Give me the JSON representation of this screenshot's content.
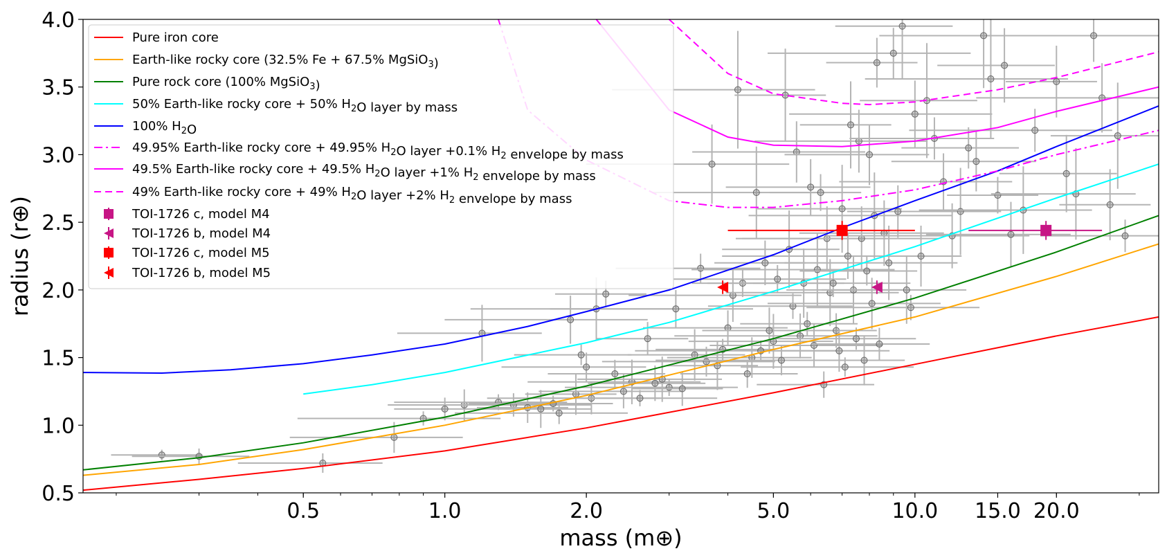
{
  "chart_data": {
    "type": "scatter",
    "xscale": "log",
    "xlabel": "mass (m⊕)",
    "ylabel": "radius (r⊕)",
    "xlim": [
      0.17,
      33
    ],
    "ylim": [
      0.5,
      4.0
    ],
    "xticks": [
      0.5,
      1.0,
      2.0,
      5.0,
      10.0,
      15.0,
      20.0
    ],
    "xtick_labels": [
      "0.5",
      "1.0",
      "2.0",
      "5.0",
      "10.0",
      "15.0",
      "20.0"
    ],
    "yticks": [
      0.5,
      1.0,
      1.5,
      2.0,
      2.5,
      3.0,
      3.5,
      4.0
    ],
    "ytick_labels": [
      "0.5",
      "1.0",
      "1.5",
      "2.0",
      "2.5",
      "3.0",
      "3.5",
      "4.0"
    ],
    "legend_position": "top-left",
    "curves": [
      {
        "name": "Pure iron core",
        "label_parts": [
          [
            "Pure iron core",
            ""
          ]
        ],
        "color": "#ff0000",
        "dash": "solid",
        "x": [
          0.17,
          0.3,
          0.5,
          1,
          2,
          5,
          10,
          20,
          33
        ],
        "y": [
          0.52,
          0.6,
          0.68,
          0.81,
          0.98,
          1.24,
          1.45,
          1.66,
          1.8
        ]
      },
      {
        "name": "Earth-like rocky core (32.5% Fe + 67.5% MgSiO3)",
        "label_parts": [
          [
            "Earth-like rocky core (32.5% Fe + 67.5% MgSiO",
            ""
          ],
          [
            "3",
            "sub"
          ],
          [
            ")",
            ""
          ]
        ],
        "color": "#ffa500",
        "dash": "solid",
        "x": [
          0.17,
          0.3,
          0.5,
          1,
          2,
          5,
          10,
          20,
          33
        ],
        "y": [
          0.63,
          0.71,
          0.82,
          1.0,
          1.22,
          1.56,
          1.8,
          2.1,
          2.34
        ]
      },
      {
        "name": "Pure rock core (100% MgSiO3)",
        "label_parts": [
          [
            "Pure rock core (100% MgSiO",
            ""
          ],
          [
            "3",
            "sub"
          ],
          [
            ")",
            ""
          ]
        ],
        "color": "#008000",
        "dash": "solid",
        "x": [
          0.17,
          0.3,
          0.5,
          1,
          2,
          5,
          10,
          20,
          33
        ],
        "y": [
          0.67,
          0.76,
          0.87,
          1.06,
          1.29,
          1.64,
          1.94,
          2.28,
          2.55
        ]
      },
      {
        "name": "50% Earth-like rocky core + 50% H2O layer by mass",
        "label_parts": [
          [
            "50% Earth-like rocky core + 50% H",
            ""
          ],
          [
            "2",
            "sub"
          ],
          [
            "O layer by mass",
            ""
          ]
        ],
        "color": "#00ffff",
        "dash": "solid",
        "x": [
          0.5,
          0.7,
          1,
          2,
          3,
          5,
          10,
          20,
          33
        ],
        "y": [
          1.23,
          1.3,
          1.39,
          1.61,
          1.76,
          1.99,
          2.32,
          2.68,
          2.93
        ]
      },
      {
        "name": "100% H2O",
        "label_parts": [
          [
            "100% H",
            ""
          ],
          [
            "2",
            "sub"
          ],
          [
            "O",
            ""
          ]
        ],
        "color": "#0000ff",
        "dash": "solid",
        "x": [
          0.17,
          0.25,
          0.35,
          0.5,
          0.7,
          1,
          1.5,
          2,
          3,
          5,
          7,
          10,
          15,
          20,
          33
        ],
        "y": [
          1.39,
          1.385,
          1.41,
          1.455,
          1.52,
          1.6,
          1.73,
          1.84,
          2.0,
          2.26,
          2.46,
          2.66,
          2.88,
          3.06,
          3.36
        ]
      },
      {
        "name": "49.95% Earth-like rocky core + 49.95% H2O layer +0.1% H2 envelope by mass",
        "label_parts": [
          [
            "49.95% Earth-like rocky core + 49.95% H",
            ""
          ],
          [
            "2",
            "sub"
          ],
          [
            "O layer +0.1% H",
            ""
          ],
          [
            "2",
            "sub"
          ],
          [
            " envelope by mass",
            ""
          ]
        ],
        "color": "#ff00ff",
        "dash": "dashdot",
        "x": [
          1.3,
          1.5,
          2,
          3,
          4,
          5,
          7,
          10,
          15,
          20,
          33
        ],
        "y": [
          4.0,
          3.33,
          2.96,
          2.66,
          2.61,
          2.61,
          2.66,
          2.74,
          2.88,
          3.0,
          3.18
        ]
      },
      {
        "name": "49.5% Earth-like rocky core + 49.5% H2O layer +1% H2 envelope by mass",
        "label_parts": [
          [
            "49.5% Earth-like rocky core + 49.5% H",
            ""
          ],
          [
            "2",
            "sub"
          ],
          [
            "O layer +1% H",
            ""
          ],
          [
            "2",
            "sub"
          ],
          [
            " envelope by mass",
            ""
          ]
        ],
        "color": "#ff00ff",
        "dash": "solid",
        "x": [
          2.1,
          3,
          4,
          5,
          7,
          10,
          15,
          20,
          33
        ],
        "y": [
          4.0,
          3.33,
          3.13,
          3.07,
          3.06,
          3.1,
          3.2,
          3.32,
          3.5
        ]
      },
      {
        "name": "49% Earth-like rocky core + 49% H2O layer +2% H2 envelope by mass",
        "label_parts": [
          [
            "49% Earth-like rocky core + 49% H",
            ""
          ],
          [
            "2",
            "sub"
          ],
          [
            "O layer +2% H",
            ""
          ],
          [
            "2",
            "sub"
          ],
          [
            " envelope by mass",
            ""
          ]
        ],
        "color": "#ff00ff",
        "dash": "dashed",
        "x": [
          3,
          4,
          5,
          7,
          8,
          10,
          15,
          20,
          33
        ],
        "y": [
          4.0,
          3.6,
          3.45,
          3.38,
          3.37,
          3.39,
          3.48,
          3.57,
          3.76
        ]
      }
    ],
    "planets": [
      {
        "name": "TOI-1726 c, model M4",
        "marker": "square",
        "color": "#c71585",
        "mass": 19.0,
        "radius": 2.44,
        "mass_err": [
          6.0,
          6.0
        ],
        "radius_err": [
          0.07,
          0.07
        ]
      },
      {
        "name": "TOI-1726 b, model M4",
        "marker": "triangle-left",
        "color": "#c71585",
        "mass": 8.3,
        "radius": 2.02,
        "mass_err": [
          0,
          0
        ],
        "radius_err": [
          0.05,
          0.05
        ]
      },
      {
        "name": "TOI-1726 c, model M5",
        "marker": "square",
        "color": "#ff0000",
        "mass": 7.0,
        "radius": 2.44,
        "mass_err": [
          3.0,
          3.0
        ],
        "radius_err": [
          0.07,
          0.07
        ]
      },
      {
        "name": "TOI-1726 b, model M5",
        "marker": "triangle-left",
        "color": "#ff0000",
        "mass": 3.9,
        "radius": 2.02,
        "mass_err": [
          0,
          0
        ],
        "radius_err": [
          0.05,
          0.05
        ]
      }
    ],
    "background_planets": [
      [
        0.25,
        0.78
      ],
      [
        0.3,
        0.77
      ],
      [
        0.55,
        0.72
      ],
      [
        0.78,
        0.91
      ],
      [
        0.9,
        1.05
      ],
      [
        1.0,
        1.12
      ],
      [
        1.1,
        1.15
      ],
      [
        1.2,
        1.68
      ],
      [
        1.3,
        1.17
      ],
      [
        1.4,
        1.15
      ],
      [
        1.5,
        1.13
      ],
      [
        1.6,
        1.12
      ],
      [
        1.7,
        1.16
      ],
      [
        1.75,
        1.09
      ],
      [
        1.85,
        1.78
      ],
      [
        1.9,
        1.23
      ],
      [
        1.95,
        1.52
      ],
      [
        2.0,
        1.43
      ],
      [
        2.05,
        1.2
      ],
      [
        2.1,
        1.86
      ],
      [
        2.2,
        1.97
      ],
      [
        2.3,
        1.38
      ],
      [
        2.4,
        1.25
      ],
      [
        2.5,
        1.32
      ],
      [
        2.6,
        1.2
      ],
      [
        2.7,
        1.64
      ],
      [
        2.8,
        1.31
      ],
      [
        2.9,
        1.34
      ],
      [
        3.0,
        1.28
      ],
      [
        3.1,
        1.86
      ],
      [
        3.2,
        1.27
      ],
      [
        3.4,
        1.52
      ],
      [
        3.5,
        2.16
      ],
      [
        3.6,
        1.47
      ],
      [
        3.7,
        2.93
      ],
      [
        3.8,
        1.44
      ],
      [
        3.9,
        1.56
      ],
      [
        4.0,
        1.72
      ],
      [
        4.1,
        1.96
      ],
      [
        4.2,
        3.48
      ],
      [
        4.3,
        2.05
      ],
      [
        4.4,
        1.38
      ],
      [
        4.5,
        1.5
      ],
      [
        4.6,
        2.72
      ],
      [
        4.7,
        1.55
      ],
      [
        4.8,
        2.2
      ],
      [
        4.9,
        1.7
      ],
      [
        5.0,
        1.62
      ],
      [
        5.1,
        2.08
      ],
      [
        5.2,
        1.48
      ],
      [
        5.3,
        3.44
      ],
      [
        5.4,
        2.3
      ],
      [
        5.5,
        1.88
      ],
      [
        5.6,
        3.02
      ],
      [
        5.7,
        1.66
      ],
      [
        5.8,
        2.05
      ],
      [
        5.9,
        1.75
      ],
      [
        6.0,
        2.76
      ],
      [
        6.1,
        1.59
      ],
      [
        6.2,
        2.15
      ],
      [
        6.3,
        2.72
      ],
      [
        6.4,
        1.3
      ],
      [
        6.5,
        2.38
      ],
      [
        6.6,
        1.98
      ],
      [
        6.7,
        2.05
      ],
      [
        6.8,
        1.7
      ],
      [
        6.9,
        1.55
      ],
      [
        7.0,
        2.6
      ],
      [
        7.1,
        1.43
      ],
      [
        7.2,
        2.25
      ],
      [
        7.3,
        3.22
      ],
      [
        7.4,
        2.0
      ],
      [
        7.5,
        1.64
      ],
      [
        7.6,
        3.1
      ],
      [
        7.7,
        2.38
      ],
      [
        7.8,
        1.48
      ],
      [
        7.9,
        2.14
      ],
      [
        8.0,
        3.0
      ],
      [
        8.1,
        1.9
      ],
      [
        8.2,
        2.55
      ],
      [
        8.3,
        3.68
      ],
      [
        8.4,
        1.6
      ],
      [
        8.6,
        2.42
      ],
      [
        8.8,
        2.2
      ],
      [
        9.0,
        3.75
      ],
      [
        9.2,
        2.58
      ],
      [
        9.4,
        3.95
      ],
      [
        9.6,
        2.0
      ],
      [
        9.8,
        1.87
      ],
      [
        10.0,
        3.3
      ],
      [
        10.3,
        2.25
      ],
      [
        10.6,
        3.4
      ],
      [
        11.0,
        3.12
      ],
      [
        11.5,
        2.8
      ],
      [
        12.0,
        2.4
      ],
      [
        12.5,
        2.58
      ],
      [
        13.0,
        3.05
      ],
      [
        13.5,
        2.95
      ],
      [
        14.0,
        3.88
      ],
      [
        14.5,
        3.56
      ],
      [
        15.0,
        2.7
      ],
      [
        15.5,
        3.66
      ],
      [
        16.0,
        2.41
      ],
      [
        17.0,
        2.59
      ],
      [
        18.0,
        3.18
      ],
      [
        20.0,
        3.54
      ],
      [
        21.0,
        2.86
      ],
      [
        22.0,
        2.71
      ],
      [
        24.0,
        3.88
      ],
      [
        25.0,
        3.42
      ],
      [
        26.0,
        2.63
      ],
      [
        27.0,
        3.14
      ],
      [
        28.0,
        2.4
      ]
    ]
  }
}
